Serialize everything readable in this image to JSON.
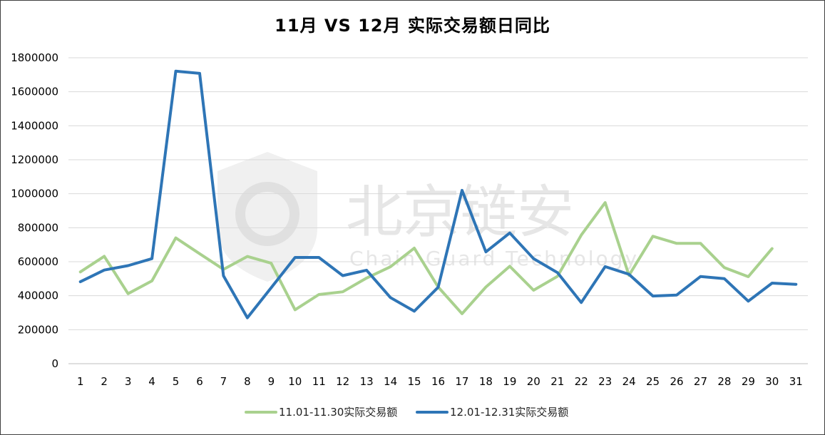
{
  "watermark": {
    "cn": "北京链安",
    "en": "Chain Guard Technology"
  },
  "chart_data": {
    "type": "line",
    "title": "11月 VS 12月 实际交易额日同比",
    "xlabel": "",
    "ylabel": "",
    "categories": [
      "1",
      "2",
      "3",
      "4",
      "5",
      "6",
      "7",
      "8",
      "9",
      "10",
      "11",
      "12",
      "13",
      "14",
      "15",
      "16",
      "17",
      "18",
      "19",
      "20",
      "21",
      "22",
      "23",
      "24",
      "25",
      "26",
      "27",
      "28",
      "29",
      "30",
      "31"
    ],
    "ylim": [
      0,
      1800000
    ],
    "yticks": [
      "0",
      "200000",
      "400000",
      "600000",
      "800000",
      "1000000",
      "1200000",
      "1400000",
      "1600000",
      "1800000"
    ],
    "grid": true,
    "legend_position": "bottom",
    "series": [
      {
        "name": "11.01-11.30实际交易额",
        "color": "#a9d18e",
        "values": [
          540000,
          632000,
          412000,
          487000,
          740000,
          647000,
          555000,
          631000,
          591000,
          317000,
          407000,
          423000,
          504000,
          570000,
          680000,
          451000,
          294000,
          451000,
          573000,
          432000,
          514000,
          757000,
          948000,
          520000,
          750000,
          708000,
          708000,
          565000,
          512000,
          677000,
          null
        ]
      },
      {
        "name": "12.01-12.31实际交易额",
        "color": "#2e75b6",
        "values": [
          482000,
          551000,
          577000,
          618000,
          1721000,
          1708000,
          517000,
          270000,
          447000,
          625000,
          625000,
          518000,
          550000,
          389000,
          309000,
          450000,
          1020000,
          658000,
          769000,
          618000,
          536000,
          360000,
          571000,
          526000,
          398000,
          404000,
          513000,
          500000,
          368000,
          474000,
          467000
        ]
      }
    ]
  }
}
